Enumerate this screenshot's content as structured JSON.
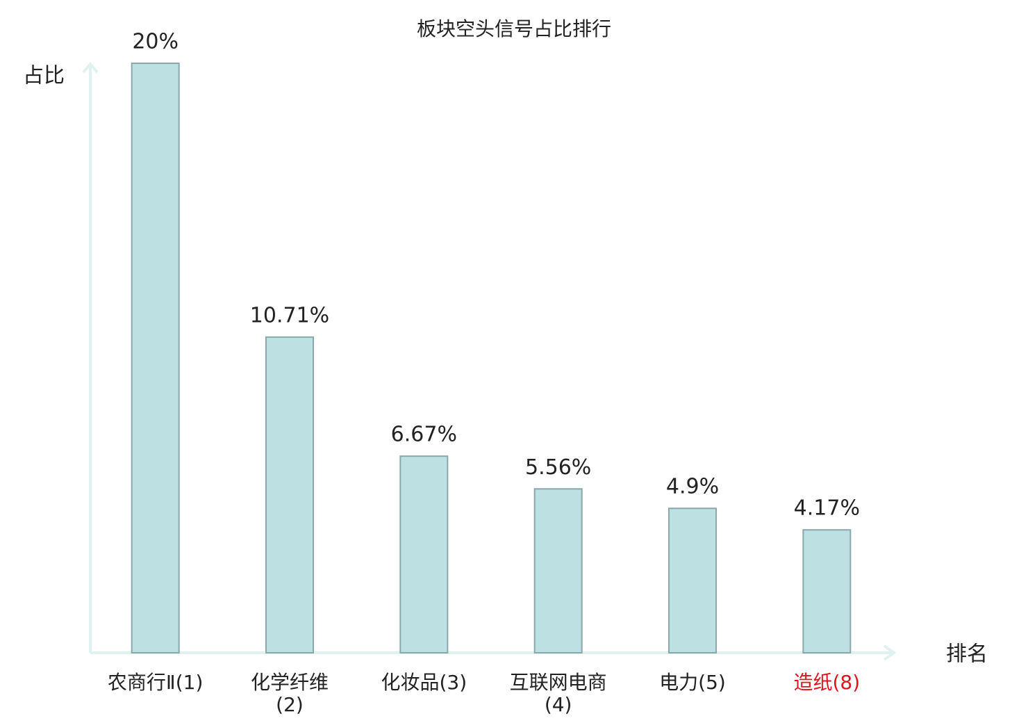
{
  "chart_data": {
    "type": "bar",
    "title": "板块空头信号占比排行",
    "y_label": "占比",
    "x_label": "排名",
    "categories": [
      "农商行Ⅱ(1)",
      "化学纤维(2)",
      "化妆品(3)",
      "互联网电商(4)",
      "电力(5)",
      "造纸(8)"
    ],
    "values": [
      20,
      10.71,
      6.67,
      5.56,
      4.9,
      4.17
    ],
    "value_labels": [
      "20%",
      "10.71%",
      "6.67%",
      "5.56%",
      "4.9%",
      "4.17%"
    ],
    "color": "#bde0e3",
    "edge_color": "#8aa8ab",
    "highlight_index": 5,
    "highlight_color": "#e0141e",
    "ylim": [
      0,
      20
    ]
  }
}
